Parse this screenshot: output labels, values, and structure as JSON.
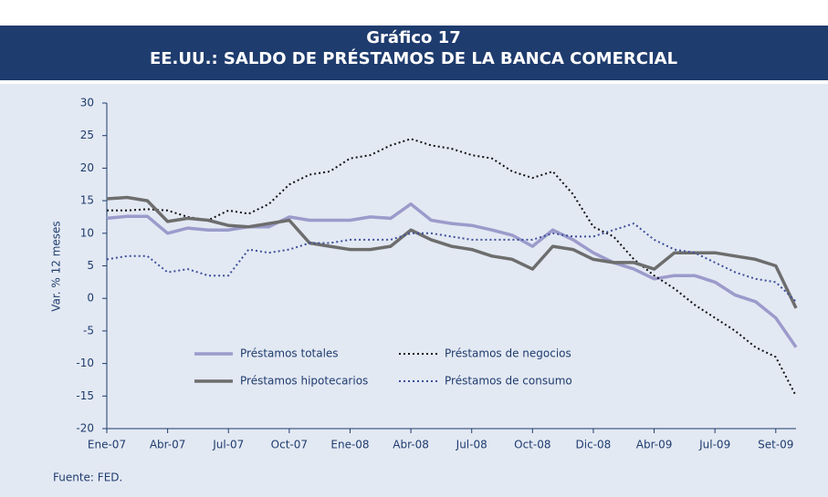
{
  "chart_data": {
    "type": "line",
    "title": "Gráfico 17",
    "subtitle": "EE.UU.: SALDO DE PRÉSTAMOS DE LA BANCA COMERCIAL",
    "ylabel": "Var. % 12 meses",
    "source": "Fuente: FED.",
    "categories": [
      "Ene-07",
      null,
      null,
      "Abr-07",
      null,
      null,
      "Jul-07",
      null,
      null,
      "Oct-07",
      null,
      null,
      "Ene-08",
      null,
      null,
      "Abr-08",
      null,
      null,
      "Jul-08",
      null,
      null,
      "Oct-08",
      null,
      null,
      "Dic-08",
      null,
      null,
      "Abr-09",
      null,
      null,
      "Jul-09",
      null,
      null,
      "Set-09",
      null
    ],
    "ylim": [
      -20,
      30
    ],
    "yticks": [
      -20,
      -15,
      -10,
      -5,
      0,
      5,
      10,
      15,
      20,
      25,
      30
    ],
    "grid": false,
    "series": [
      {
        "name": "Préstamos totales",
        "color": "#9b9bcb",
        "style": "solid",
        "values": [
          12.3,
          12.6,
          12.6,
          10,
          10.8,
          10.5,
          10.5,
          11,
          11,
          12.5,
          12,
          12,
          12,
          12.5,
          12.3,
          14.5,
          12,
          11.5,
          11.2,
          10.5,
          9.7,
          8,
          10.5,
          9,
          7,
          5.5,
          4.5,
          3,
          3.5,
          3.5,
          2.5,
          0.5,
          -0.5,
          -3,
          -7.5
        ]
      },
      {
        "name": "Préstamos de negocios",
        "color": "#111111",
        "style": "dotted",
        "values": [
          13.5,
          13.5,
          13.7,
          13.5,
          12.5,
          12,
          13.5,
          13,
          14.5,
          17.5,
          19,
          19.5,
          21.5,
          22,
          23.5,
          24.5,
          23.5,
          23,
          22,
          21.5,
          19.5,
          18.5,
          19.5,
          16,
          11,
          9.5,
          6,
          3.5,
          1.5,
          -1,
          -3,
          -5,
          -7.5,
          -9,
          -15
        ]
      },
      {
        "name": "Préstamos hipotecarios",
        "color": "#6d6d6d",
        "style": "solid",
        "values": [
          15.3,
          15.5,
          15,
          11.8,
          12.3,
          12,
          11.2,
          11,
          11.5,
          12,
          8.5,
          8,
          7.5,
          7.5,
          8,
          10.5,
          9,
          8,
          7.5,
          6.5,
          6,
          4.5,
          8,
          7.5,
          6,
          5.5,
          5.5,
          4.5,
          7,
          7,
          7,
          6.5,
          6,
          5,
          -1.5
        ]
      },
      {
        "name": "Préstamos de consumo",
        "color": "#3d4f9a",
        "style": "dotted",
        "values": [
          6,
          6.5,
          6.5,
          4,
          4.5,
          3.5,
          3.5,
          7.5,
          7,
          7.5,
          8.5,
          8.5,
          9,
          9,
          9,
          10,
          10,
          9.5,
          9,
          9,
          9,
          9,
          10,
          9.5,
          9.5,
          10.5,
          11.5,
          9,
          7.5,
          7,
          5.5,
          4,
          3,
          2.5,
          -0.5
        ]
      }
    ]
  }
}
